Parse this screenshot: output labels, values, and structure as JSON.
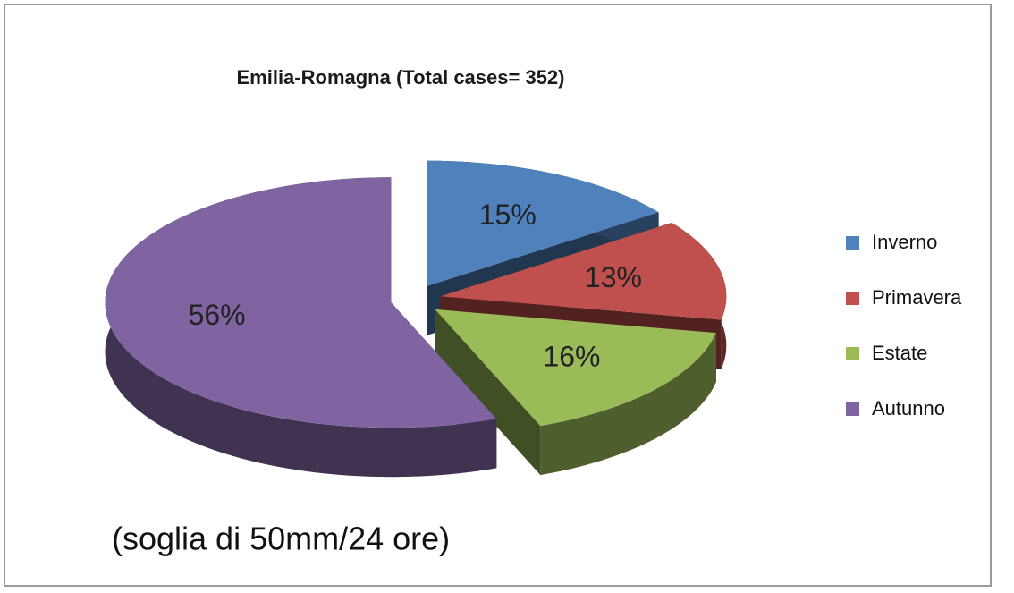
{
  "chart_data": {
    "type": "pie",
    "title": "Emilia-Romagna (Total cases= 352)",
    "categories": [
      "Inverno",
      "Primavera",
      "Estate",
      "Autunno"
    ],
    "values": [
      15,
      13,
      16,
      56
    ],
    "value_labels": [
      "15%",
      "13%",
      "16%",
      "56%"
    ],
    "colors": [
      "#4f81bd",
      "#c0504d",
      "#9bbb59",
      "#8064a2"
    ],
    "legend": "right",
    "annotation": "(soglia di 50mm/24 ore)"
  }
}
